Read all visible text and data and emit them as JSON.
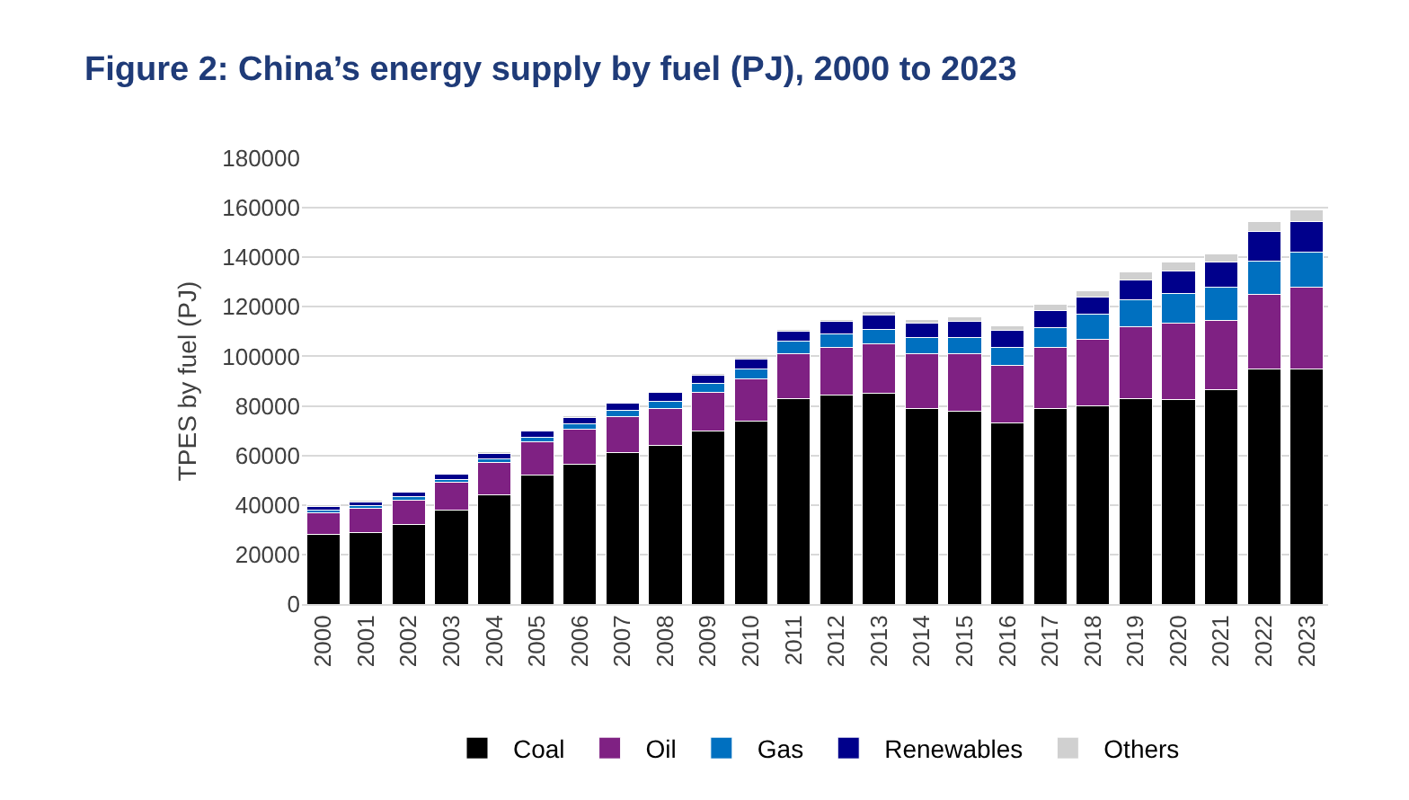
{
  "chart_data": {
    "type": "bar",
    "title": "Figure 2: China’s energy supply by fuel (PJ), 2000 to 2023",
    "ylabel": "TPES by fuel (PJ)",
    "categories": [
      "2000",
      "2001",
      "2002",
      "2003",
      "2004",
      "2005",
      "2006",
      "2007",
      "2008",
      "2009",
      "2010",
      "2011",
      "2012",
      "2013",
      "2014",
      "2015",
      "2016",
      "2017",
      "2018",
      "2019",
      "2020",
      "2021",
      "2022",
      "2023"
    ],
    "stacked": true,
    "series": [
      {
        "name": "Coal",
        "color": "#000000",
        "values": [
          28000,
          29000,
          32000,
          38000,
          44000,
          52000,
          56500,
          61000,
          64000,
          70000,
          74000,
          83000,
          84500,
          85000,
          79000,
          78000,
          73000,
          79000,
          80000,
          83000,
          82500,
          86500,
          95000,
          95000
        ]
      },
      {
        "name": "Oil",
        "color": "#7f2183",
        "values": [
          9000,
          9500,
          10000,
          11000,
          13000,
          13500,
          14000,
          14500,
          15000,
          15500,
          17000,
          18000,
          19000,
          20000,
          22000,
          23000,
          23500,
          24500,
          27000,
          29000,
          31000,
          28000,
          30000,
          33000
        ]
      },
      {
        "name": "Gas",
        "color": "#0070c0",
        "values": [
          1000,
          1200,
          1300,
          1400,
          1600,
          1900,
          2200,
          2700,
          3000,
          3500,
          4000,
          5000,
          5500,
          6000,
          6500,
          6600,
          7000,
          8000,
          10000,
          11000,
          12000,
          13500,
          13500,
          14000
        ]
      },
      {
        "name": "Renewables",
        "color": "#00008b",
        "values": [
          1500,
          1600,
          1800,
          2000,
          2300,
          2400,
          2700,
          2800,
          3300,
          3500,
          4000,
          4000,
          5000,
          5500,
          6000,
          6500,
          7000,
          7000,
          7000,
          8000,
          9000,
          10000,
          12000,
          12500
        ]
      },
      {
        "name": "Others",
        "color": "#d0d0d0",
        "values": [
          500,
          500,
          null,
          null,
          500,
          null,
          500,
          null,
          null,
          700,
          800,
          800,
          1000,
          1500,
          1500,
          1800,
          2000,
          2500,
          2500,
          3000,
          3500,
          3500,
          4000,
          4500
        ]
      }
    ],
    "ylim": [
      0,
      180000
    ],
    "yticks": [
      0,
      20000,
      40000,
      60000,
      80000,
      100000,
      120000,
      140000,
      160000,
      180000
    ],
    "grid": "y",
    "legend": "bottom"
  }
}
